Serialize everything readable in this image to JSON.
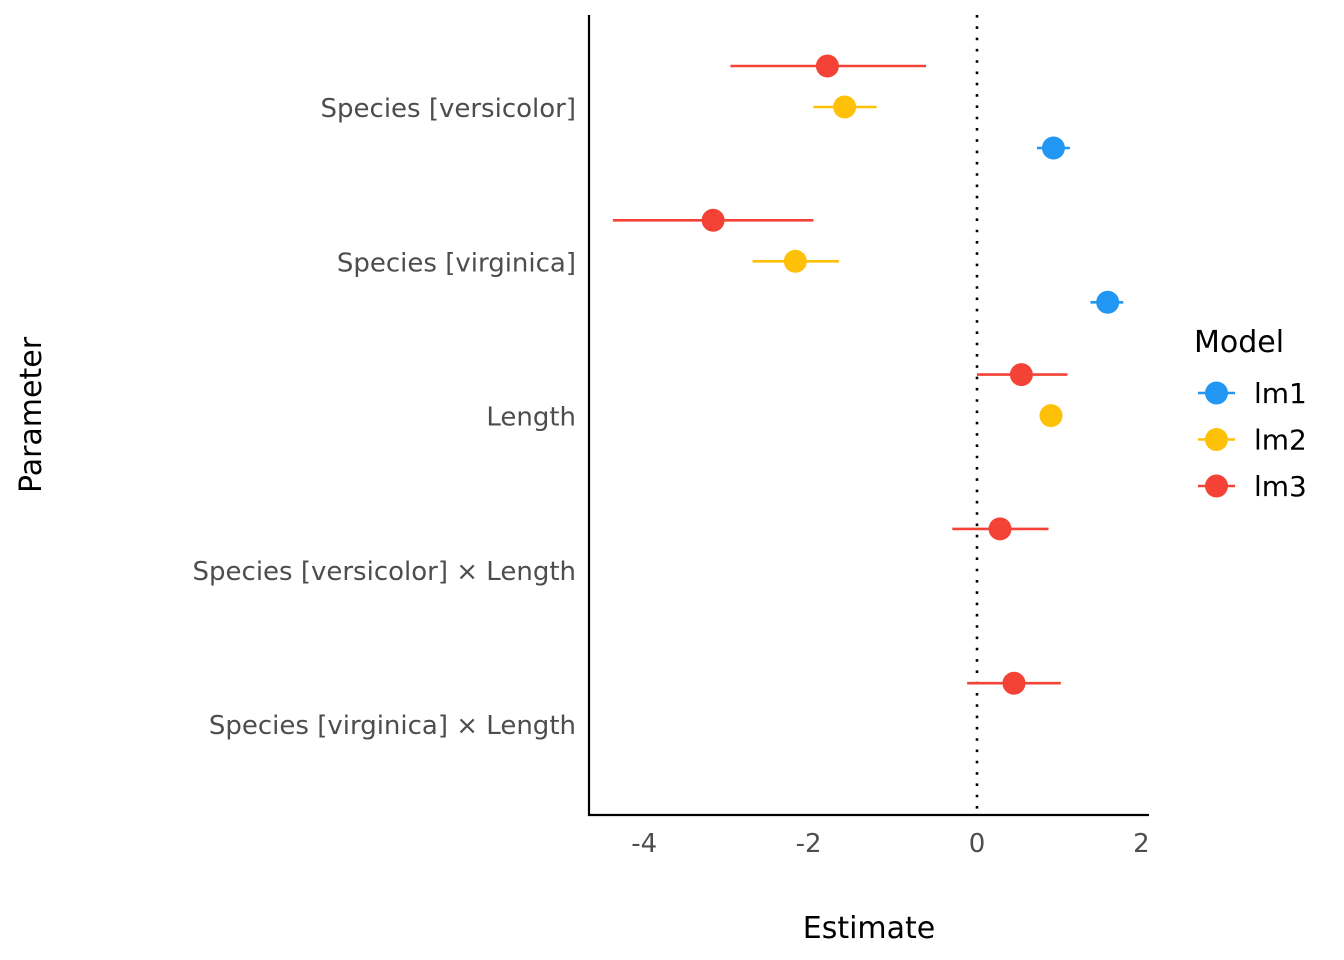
{
  "chart_data": {
    "type": "scatter",
    "subtype": "coefficient-plot",
    "title": "",
    "xlabel": "Estimate",
    "ylabel": "Parameter",
    "xlim": [
      -4.7,
      2.1
    ],
    "xticks": [
      -4,
      -2,
      0,
      2
    ],
    "xtick_labels": [
      "-4",
      "-2",
      "0",
      "2"
    ],
    "reference_line": {
      "x": 0,
      "style": "dotted"
    },
    "grid": false,
    "categories": [
      "Species [versicolor]",
      "Species [virginica]",
      "Length",
      "Species [versicolor] × Length",
      "Species [virginica] × Length"
    ],
    "legend": {
      "title": "Model",
      "position": "right"
    },
    "series": [
      {
        "name": "lm1",
        "color": "#2196F3",
        "points": [
          {
            "category": "Species [versicolor]",
            "estimate": 0.93,
            "ci_low": 0.73,
            "ci_high": 1.13
          },
          {
            "category": "Species [virginica]",
            "estimate": 1.59,
            "ci_low": 1.38,
            "ci_high": 1.78
          }
        ]
      },
      {
        "name": "lm2",
        "color": "#FFC107",
        "points": [
          {
            "category": "Species [versicolor]",
            "estimate": -1.61,
            "ci_low": -1.99,
            "ci_high": -1.22
          },
          {
            "category": "Species [virginica]",
            "estimate": -2.21,
            "ci_low": -2.73,
            "ci_high": -1.68
          },
          {
            "category": "Length",
            "estimate": 0.9,
            "ci_low": 0.82,
            "ci_high": 0.98
          }
        ]
      },
      {
        "name": "lm3",
        "color": "#F44336",
        "points": [
          {
            "category": "Species [versicolor]",
            "estimate": -1.82,
            "ci_low": -3.0,
            "ci_high": -0.62
          },
          {
            "category": "Species [virginica]",
            "estimate": -3.21,
            "ci_low": -4.43,
            "ci_high": -1.99
          },
          {
            "category": "Length",
            "estimate": 0.54,
            "ci_low": 0.0,
            "ci_high": 1.1
          },
          {
            "category": "Species [versicolor] × Length",
            "estimate": 0.28,
            "ci_low": -0.3,
            "ci_high": 0.87
          },
          {
            "category": "Species [virginica] × Length",
            "estimate": 0.45,
            "ci_low": -0.12,
            "ci_high": 1.02
          }
        ]
      }
    ]
  }
}
